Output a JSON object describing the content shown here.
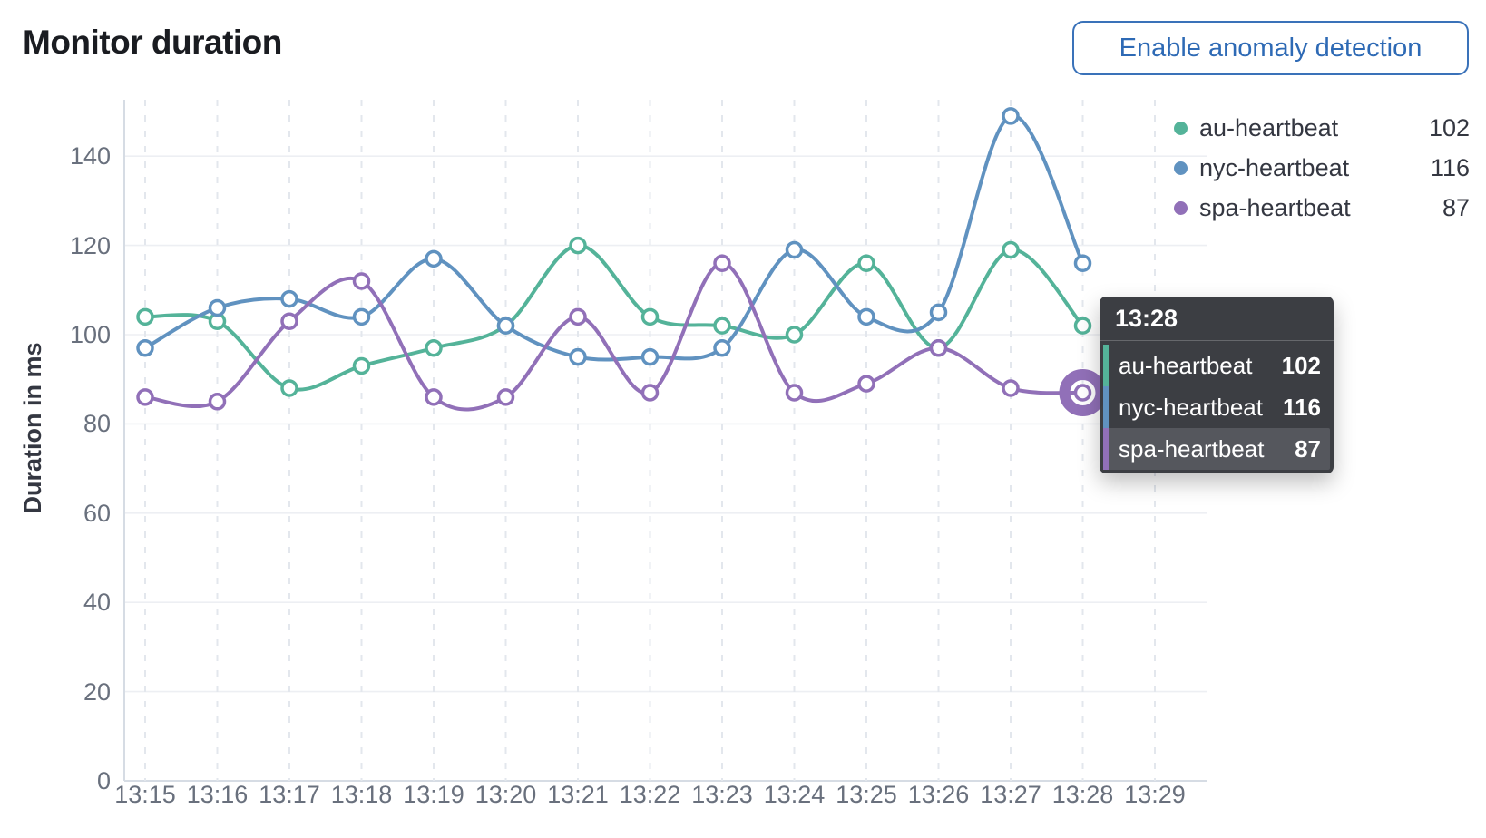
{
  "header": {
    "title": "Monitor duration",
    "button_label": "Enable anomaly detection"
  },
  "legend": {
    "position": "right",
    "items": [
      {
        "label": "au-heartbeat",
        "value": "102"
      },
      {
        "label": "nyc-heartbeat",
        "value": "116"
      },
      {
        "label": "spa-heartbeat",
        "value": "87"
      }
    ]
  },
  "tooltip": {
    "header": "13:28",
    "rows": [
      {
        "label": "au-heartbeat",
        "value": "102",
        "highlighted": false
      },
      {
        "label": "nyc-heartbeat",
        "value": "116",
        "highlighted": false
      },
      {
        "label": "spa-heartbeat",
        "value": "87",
        "highlighted": true
      }
    ]
  },
  "chart_data": {
    "type": "line",
    "title": "Monitor duration",
    "ylabel": "Duration in ms",
    "xlabel": "",
    "ylim": [
      0,
      150
    ],
    "yticks": [
      0,
      20,
      40,
      60,
      80,
      100,
      120,
      140
    ],
    "x_ticks": [
      "13:15",
      "13:16",
      "13:17",
      "13:18",
      "13:19",
      "13:20",
      "13:21",
      "13:22",
      "13:23",
      "13:24",
      "13:25",
      "13:26",
      "13:27",
      "13:28",
      "13:29"
    ],
    "categories": [
      "13:15",
      "13:16",
      "13:17",
      "13:18",
      "13:19",
      "13:20",
      "13:21",
      "13:22",
      "13:23",
      "13:24",
      "13:25",
      "13:26",
      "13:27",
      "13:28"
    ],
    "grid": true,
    "curve": "catmull-rom",
    "legend_position": "right",
    "series": [
      {
        "name": "au-heartbeat",
        "color": "#54B399",
        "values": [
          104,
          103,
          88,
          93,
          97,
          102,
          120,
          104,
          102,
          100,
          116,
          97,
          119,
          102
        ]
      },
      {
        "name": "nyc-heartbeat",
        "color": "#6092C0",
        "values": [
          97,
          106,
          108,
          104,
          117,
          102,
          95,
          95,
          97,
          119,
          104,
          105,
          149,
          116
        ]
      },
      {
        "name": "spa-heartbeat",
        "color": "#9170B8",
        "values": [
          86,
          85,
          103,
          112,
          86,
          86,
          104,
          87,
          116,
          87,
          89,
          97,
          88,
          87
        ]
      }
    ],
    "highlight": {
      "series": "spa-heartbeat",
      "x": "13:28",
      "value": 87
    }
  },
  "colors": {
    "series_green": "#54B399",
    "series_blue": "#6092C0",
    "series_purple": "#9170B8",
    "button_blue": "#2e6ab5",
    "title_text": "#1a1c21",
    "axis_text": "#69707d",
    "axis_title_text": "#343741",
    "gridline": "#edeff3",
    "gridline_dashed": "#e3e7ed",
    "axis_line": "#d6dce4",
    "tooltip_bg": "#383a3f",
    "tooltip_highlight": "#55575d"
  }
}
